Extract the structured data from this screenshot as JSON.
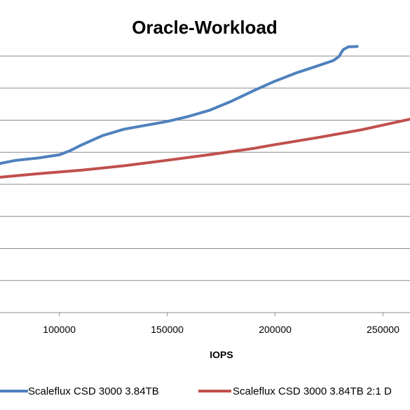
{
  "chart_data": {
    "type": "line",
    "title": "Oracle-Workload",
    "xlabel": "IOPS",
    "ylabel": "",
    "xlim": [
      72500,
      262500
    ],
    "ylim": [
      0,
      8
    ],
    "x_ticks": [
      100000,
      150000,
      200000,
      250000
    ],
    "x_tick_labels": [
      "100000",
      "150000",
      "200000",
      "250000"
    ],
    "y_gridlines": [
      1,
      2,
      3,
      4,
      5,
      6,
      7,
      8
    ],
    "y_tick_labels_visible": false,
    "grid": true,
    "legend_position": "bottom",
    "series": [
      {
        "name": "Scaleflux CSD 3000 3.84TB",
        "color": "#4f81bd",
        "points": [
          [
            72500,
            4.65
          ],
          [
            80000,
            4.75
          ],
          [
            90000,
            4.82
          ],
          [
            100000,
            4.92
          ],
          [
            105000,
            5.05
          ],
          [
            110000,
            5.22
          ],
          [
            120000,
            5.52
          ],
          [
            130000,
            5.72
          ],
          [
            140000,
            5.84
          ],
          [
            150000,
            5.96
          ],
          [
            160000,
            6.12
          ],
          [
            170000,
            6.32
          ],
          [
            180000,
            6.6
          ],
          [
            190000,
            6.92
          ],
          [
            200000,
            7.22
          ],
          [
            210000,
            7.48
          ],
          [
            220000,
            7.7
          ],
          [
            227000,
            7.86
          ],
          [
            229500,
            7.98
          ],
          [
            231500,
            8.2
          ],
          [
            234000,
            8.29
          ],
          [
            238000,
            8.3
          ]
        ]
      },
      {
        "name": "Scaleflux CSD 3000 3.84TB 2:1 D",
        "color": "#c0504d",
        "points": [
          [
            72500,
            4.22
          ],
          [
            90000,
            4.33
          ],
          [
            110000,
            4.44
          ],
          [
            130000,
            4.58
          ],
          [
            150000,
            4.75
          ],
          [
            170000,
            4.93
          ],
          [
            190000,
            5.12
          ],
          [
            200000,
            5.24
          ],
          [
            220000,
            5.46
          ],
          [
            240000,
            5.7
          ],
          [
            262500,
            6.03
          ]
        ]
      }
    ]
  }
}
